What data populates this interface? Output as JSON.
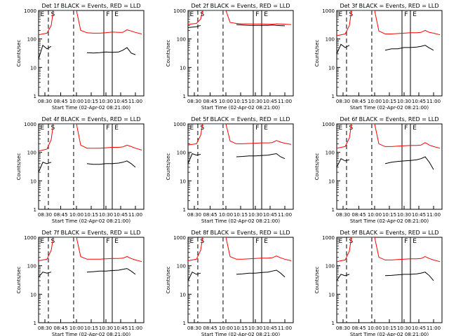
{
  "colors": {
    "events": "#000000",
    "lld": "#ff0000",
    "axis": "#000000"
  },
  "chart_data": [
    {
      "type": "line",
      "title": "Det 1f BLACK = Events, RED = LLD",
      "xlabel": "Start Time (02-Apr-02 08:21:00)",
      "ylabel": "Counts/sec",
      "y_scale": "log",
      "ylim": [
        1,
        1000
      ],
      "x_tick_labels": [
        "08:30",
        "08:45",
        "10:00",
        "10:15",
        "10:30",
        "10:45",
        "11:00"
      ],
      "y_tick_labels": [
        "1",
        "10",
        "100",
        "1000"
      ],
      "region_labels": [
        "E",
        "S",
        "F",
        "E"
      ],
      "series": [
        {
          "name": "Events",
          "color": "#000000",
          "x": [
            0.0,
            0.04,
            0.08,
            0.12,
            0.14,
            0.4,
            0.46,
            0.52,
            0.58,
            0.64,
            0.7,
            0.76,
            0.8,
            0.84,
            0.88,
            0.92
          ],
          "y": [
            20,
            60,
            45,
            55,
            null,
            null,
            33,
            32,
            33,
            35,
            34,
            35,
            40,
            50,
            32,
            28
          ]
        },
        {
          "name": "LLD",
          "color": "#ff0000",
          "x": [
            0.0,
            0.04,
            0.08,
            0.12,
            0.14,
            0.18,
            0.36,
            0.4,
            0.46,
            0.52,
            0.58,
            0.64,
            0.7,
            0.76,
            0.8,
            0.84,
            0.88,
            0.92,
            0.98
          ],
          "y": [
            140,
            150,
            160,
            300,
            1000,
            1000,
            1000,
            200,
            165,
            160,
            160,
            165,
            175,
            170,
            170,
            210,
            190,
            170,
            150
          ]
        }
      ]
    },
    {
      "type": "line",
      "title": "Det 2f BLACK = Events, RED = LLD",
      "xlabel": "Start Time (02-Apr-02 08:21:00)",
      "ylabel": "Counts/sec",
      "y_scale": "log",
      "ylim": [
        1,
        1000
      ],
      "x_tick_labels": [
        "08:30",
        "08:45",
        "10:00",
        "10:15",
        "10:30",
        "10:45",
        "11:00"
      ],
      "y_tick_labels": [
        "1",
        "10",
        "100",
        "1000"
      ],
      "region_labels": [
        "E",
        "S",
        "F",
        "E"
      ],
      "series": [
        {
          "name": "Events",
          "color": "#000000",
          "x": [
            0.0,
            0.04,
            0.08,
            0.12,
            0.14,
            0.4,
            0.46,
            0.52,
            0.58,
            0.64,
            0.7,
            0.76,
            0.8,
            0.84,
            0.88,
            0.92
          ],
          "y": [
            250,
            260,
            270,
            300,
            null,
            null,
            320,
            310,
            300,
            300,
            300,
            300,
            310,
            300,
            295,
            290
          ]
        },
        {
          "name": "LLD",
          "color": "#ff0000",
          "x": [
            0.0,
            0.04,
            0.08,
            0.12,
            0.14,
            0.18,
            0.36,
            0.4,
            0.46,
            0.52,
            0.58,
            0.64,
            0.7,
            0.76,
            0.8,
            0.84,
            0.88,
            0.92,
            0.98
          ],
          "y": [
            330,
            340,
            350,
            500,
            1000,
            1000,
            1000,
            380,
            350,
            340,
            340,
            335,
            335,
            330,
            330,
            340,
            335,
            330,
            320
          ]
        }
      ]
    },
    {
      "type": "line",
      "title": "Det 3f BLACK = Events, RED = LLD",
      "xlabel": "Start Time (02-Apr-02 08:21:00)",
      "ylabel": "Counts/sec",
      "y_scale": "log",
      "ylim": [
        1,
        1000
      ],
      "x_tick_labels": [
        "08:30",
        "08:45",
        "10:00",
        "10:15",
        "10:30",
        "10:45",
        "11:00"
      ],
      "y_tick_labels": [
        "1",
        "10",
        "100",
        "1000"
      ],
      "region_labels": [
        "E",
        "S",
        "F",
        "E"
      ],
      "series": [
        {
          "name": "Events",
          "color": "#000000",
          "x": [
            0.0,
            0.04,
            0.08,
            0.12,
            0.14,
            0.4,
            0.46,
            0.52,
            0.58,
            0.64,
            0.7,
            0.76,
            0.8,
            0.84,
            0.88,
            0.92
          ],
          "y": [
            30,
            65,
            50,
            60,
            null,
            null,
            40,
            45,
            45,
            50,
            50,
            52,
            55,
            60,
            48,
            40
          ]
        },
        {
          "name": "LLD",
          "color": "#ff0000",
          "x": [
            0.0,
            0.04,
            0.08,
            0.12,
            0.14,
            0.18,
            0.36,
            0.4,
            0.46,
            0.52,
            0.58,
            0.64,
            0.7,
            0.76,
            0.8,
            0.84,
            0.88,
            0.92,
            0.98
          ],
          "y": [
            130,
            140,
            150,
            300,
            1000,
            1000,
            1000,
            190,
            150,
            150,
            155,
            160,
            165,
            165,
            170,
            200,
            170,
            160,
            140
          ]
        }
      ]
    },
    {
      "type": "line",
      "title": "Det 4f BLACK = Events, RED = LLD",
      "xlabel": "Start Time (02-Apr-02 08:21:00)",
      "ylabel": "Counts/sec",
      "y_scale": "log",
      "ylim": [
        1,
        1000
      ],
      "x_tick_labels": [
        "08:30",
        "08:45",
        "10:00",
        "10:15",
        "10:30",
        "10:45",
        "11:00"
      ],
      "y_tick_labels": [
        "1",
        "10",
        "100",
        "1000"
      ],
      "region_labels": [
        "E",
        "S",
        "F",
        "E"
      ],
      "series": [
        {
          "name": "Events",
          "color": "#000000",
          "x": [
            0.0,
            0.04,
            0.08,
            0.12,
            0.14,
            0.4,
            0.46,
            0.52,
            0.58,
            0.64,
            0.7,
            0.76,
            0.8,
            0.84,
            0.88,
            0.92
          ],
          "y": [
            20,
            45,
            40,
            45,
            null,
            null,
            40,
            38,
            38,
            40,
            40,
            42,
            45,
            50,
            40,
            30
          ]
        },
        {
          "name": "LLD",
          "color": "#ff0000",
          "x": [
            0.0,
            0.04,
            0.08,
            0.12,
            0.14,
            0.18,
            0.36,
            0.4,
            0.46,
            0.52,
            0.58,
            0.64,
            0.7,
            0.76,
            0.8,
            0.84,
            0.88,
            0.92,
            0.98
          ],
          "y": [
            110,
            120,
            130,
            280,
            1000,
            1000,
            1000,
            180,
            140,
            140,
            140,
            145,
            150,
            150,
            155,
            180,
            160,
            140,
            120
          ]
        }
      ]
    },
    {
      "type": "line",
      "title": "Det 5f BLACK = Events, RED = LLD",
      "xlabel": "Start Time (02-Apr-02 08:21:00)",
      "ylabel": "Counts/sec",
      "y_scale": "log",
      "ylim": [
        1,
        1000
      ],
      "x_tick_labels": [
        "08:30",
        "08:45",
        "10:00",
        "10:15",
        "10:30",
        "10:45",
        "11:00"
      ],
      "y_tick_labels": [
        "1",
        "10",
        "100",
        "1000"
      ],
      "region_labels": [
        "E",
        "S",
        "F",
        "E"
      ],
      "series": [
        {
          "name": "Events",
          "color": "#000000",
          "x": [
            0.0,
            0.04,
            0.08,
            0.12,
            0.14,
            0.4,
            0.46,
            0.52,
            0.58,
            0.64,
            0.7,
            0.76,
            0.8,
            0.84,
            0.88,
            0.92
          ],
          "y": [
            40,
            90,
            80,
            85,
            null,
            null,
            70,
            72,
            75,
            75,
            78,
            80,
            85,
            90,
            70,
            60
          ]
        },
        {
          "name": "LLD",
          "color": "#ff0000",
          "x": [
            0.0,
            0.04,
            0.08,
            0.12,
            0.14,
            0.18,
            0.36,
            0.4,
            0.46,
            0.52,
            0.58,
            0.64,
            0.7,
            0.76,
            0.8,
            0.84,
            0.88,
            0.92,
            0.98
          ],
          "y": [
            180,
            190,
            200,
            400,
            1000,
            1000,
            1000,
            250,
            200,
            200,
            205,
            210,
            215,
            215,
            220,
            260,
            230,
            210,
            190
          ]
        }
      ]
    },
    {
      "type": "line",
      "title": "Det 6f BLACK = Events, RED = LLD",
      "xlabel": "Start Time (02-Apr-02 08:21:00)",
      "ylabel": "Counts/sec",
      "y_scale": "log",
      "ylim": [
        1,
        1000
      ],
      "x_tick_labels": [
        "08:30",
        "08:45",
        "10:00",
        "10:15",
        "10:30",
        "10:45",
        "11:00"
      ],
      "y_tick_labels": [
        "1",
        "10",
        "100",
        "1000"
      ],
      "region_labels": [
        "E",
        "S",
        "F",
        "E"
      ],
      "series": [
        {
          "name": "Events",
          "color": "#000000",
          "x": [
            0.0,
            0.04,
            0.08,
            0.12,
            0.14,
            0.4,
            0.46,
            0.52,
            0.58,
            0.64,
            0.7,
            0.76,
            0.8,
            0.84,
            0.88,
            0.92
          ],
          "y": [
            30,
            60,
            50,
            55,
            null,
            null,
            40,
            45,
            48,
            50,
            52,
            55,
            60,
            70,
            45,
            25
          ]
        },
        {
          "name": "LLD",
          "color": "#ff0000",
          "x": [
            0.0,
            0.04,
            0.08,
            0.12,
            0.14,
            0.18,
            0.36,
            0.4,
            0.46,
            0.52,
            0.58,
            0.64,
            0.7,
            0.76,
            0.8,
            0.84,
            0.88,
            0.92,
            0.98
          ],
          "y": [
            140,
            150,
            160,
            320,
            1000,
            1000,
            1000,
            200,
            160,
            160,
            165,
            170,
            175,
            175,
            180,
            220,
            180,
            160,
            140
          ]
        }
      ]
    },
    {
      "type": "line",
      "title": "Det 7f BLACK = Events, RED = LLD",
      "xlabel": "Start Time (02-Apr-02 08:21:00)",
      "ylabel": "Counts/sec",
      "y_scale": "log",
      "ylim": [
        1,
        1000
      ],
      "x_tick_labels": [
        "08:30",
        "08:45",
        "10:00",
        "10:15",
        "10:30",
        "10:45",
        "11:00"
      ],
      "y_tick_labels": [
        "1",
        "10",
        "100",
        "1000"
      ],
      "region_labels": [
        "E",
        "S",
        "F",
        "E"
      ],
      "series": [
        {
          "name": "Events",
          "color": "#000000",
          "x": [
            0.0,
            0.04,
            0.08,
            0.12,
            0.14,
            0.4,
            0.46,
            0.52,
            0.58,
            0.64,
            0.7,
            0.76,
            0.8,
            0.84,
            0.88,
            0.92
          ],
          "y": [
            40,
            60,
            55,
            60,
            null,
            null,
            60,
            62,
            65,
            65,
            68,
            70,
            75,
            80,
            65,
            50
          ]
        },
        {
          "name": "LLD",
          "color": "#ff0000",
          "x": [
            0.0,
            0.04,
            0.08,
            0.12,
            0.14,
            0.18,
            0.36,
            0.4,
            0.46,
            0.52,
            0.58,
            0.64,
            0.7,
            0.76,
            0.8,
            0.84,
            0.88,
            0.92,
            0.98
          ],
          "y": [
            150,
            160,
            170,
            350,
            1000,
            1000,
            1000,
            210,
            170,
            170,
            170,
            175,
            180,
            180,
            185,
            210,
            180,
            160,
            140
          ]
        }
      ]
    },
    {
      "type": "line",
      "title": "Det 8f BLACK = Events, RED = LLD",
      "xlabel": "Start Time (02-Apr-02 08:21:00)",
      "ylabel": "Counts/sec",
      "y_scale": "log",
      "ylim": [
        1,
        1000
      ],
      "x_tick_labels": [
        "08:30",
        "08:45",
        "10:00",
        "10:15",
        "10:30",
        "10:45",
        "11:00"
      ],
      "y_tick_labels": [
        "1",
        "10",
        "100",
        "1000"
      ],
      "region_labels": [
        "E",
        "S",
        "F",
        "E"
      ],
      "series": [
        {
          "name": "Events",
          "color": "#000000",
          "x": [
            0.0,
            0.04,
            0.08,
            0.12,
            0.14,
            0.4,
            0.46,
            0.52,
            0.58,
            0.64,
            0.7,
            0.76,
            0.8,
            0.84,
            0.88,
            0.92
          ],
          "y": [
            30,
            60,
            50,
            55,
            null,
            null,
            50,
            52,
            55,
            55,
            58,
            60,
            65,
            70,
            55,
            40
          ]
        },
        {
          "name": "LLD",
          "color": "#ff0000",
          "x": [
            0.0,
            0.04,
            0.08,
            0.12,
            0.14,
            0.18,
            0.36,
            0.4,
            0.46,
            0.52,
            0.58,
            0.64,
            0.7,
            0.76,
            0.8,
            0.84,
            0.88,
            0.92,
            0.98
          ],
          "y": [
            150,
            160,
            170,
            350,
            1000,
            1000,
            1000,
            210,
            170,
            170,
            175,
            180,
            185,
            185,
            190,
            220,
            190,
            170,
            150
          ]
        }
      ]
    },
    {
      "type": "line",
      "title": "Det 9f BLACK = Events, RED = LLD",
      "xlabel": "Start Time (02-Apr-02 08:21:00)",
      "ylabel": "Counts/sec",
      "y_scale": "log",
      "ylim": [
        1,
        1000
      ],
      "x_tick_labels": [
        "08:30",
        "08:45",
        "10:00",
        "10:15",
        "10:30",
        "10:45",
        "11:00"
      ],
      "y_tick_labels": [
        "1",
        "10",
        "100",
        "1000"
      ],
      "region_labels": [
        "E",
        "S",
        "F",
        "E"
      ],
      "series": [
        {
          "name": "Events",
          "color": "#000000",
          "x": [
            0.0,
            0.04,
            0.08,
            0.12,
            0.14,
            0.4,
            0.46,
            0.52,
            0.58,
            0.64,
            0.7,
            0.76,
            0.8,
            0.84,
            0.88,
            0.92
          ],
          "y": [
            30,
            50,
            45,
            50,
            null,
            null,
            45,
            46,
            48,
            50,
            50,
            52,
            55,
            60,
            45,
            30
          ]
        },
        {
          "name": "LLD",
          "color": "#ff0000",
          "x": [
            0.0,
            0.04,
            0.08,
            0.12,
            0.14,
            0.18,
            0.36,
            0.4,
            0.46,
            0.52,
            0.58,
            0.64,
            0.7,
            0.76,
            0.8,
            0.84,
            0.88,
            0.92,
            0.98
          ],
          "y": [
            140,
            150,
            160,
            330,
            1000,
            1000,
            1000,
            200,
            160,
            160,
            165,
            170,
            175,
            175,
            180,
            210,
            180,
            160,
            140
          ]
        }
      ]
    }
  ]
}
